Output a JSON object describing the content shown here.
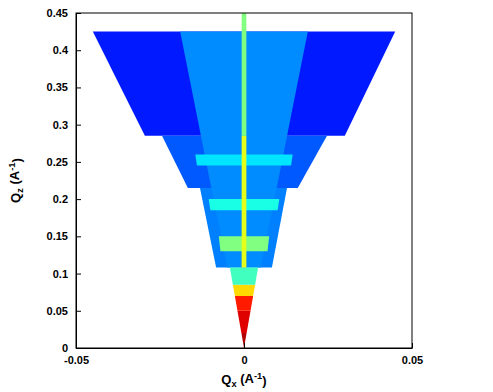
{
  "chart_data": {
    "type": "heatmap",
    "x_label": "Qx (A-1)",
    "y_label": "Qz (A-1)",
    "xlim": [
      -0.05,
      0.05
    ],
    "ylim": [
      0,
      0.45
    ],
    "xticks": [
      -0.05,
      0,
      0.05
    ],
    "yticks": [
      0,
      0.05,
      0.1,
      0.15,
      0.2,
      0.25,
      0.3,
      0.35,
      0.4,
      0.45
    ],
    "color_range": [
      0,
      1
    ],
    "cells": [
      {
        "x": [
          -0.0295,
          0.03,
          0.045,
          -0.045
        ],
        "z": [
          0.285,
          0.285,
          0.425,
          0.425
        ],
        "value": 0.22
      },
      {
        "x": [
          -0.0167,
          0.016,
          0.0247,
          -0.0244
        ],
        "z": [
          0.215,
          0.215,
          0.285,
          0.285
        ],
        "value": 0.27
      },
      {
        "x": [
          -0.0083,
          0.0083,
          0.0128,
          -0.0131
        ],
        "z": [
          0.108,
          0.108,
          0.215,
          0.215
        ],
        "value": 0.3
      },
      {
        "x": [
          -0.005,
          0.005,
          0.019,
          -0.019
        ],
        "z": [
          0.108,
          0.108,
          0.425,
          0.425
        ],
        "value": 0.31
      },
      {
        "x": [
          -0.007,
          0.007,
          0.0075,
          -0.0075
        ],
        "z": [
          0.13,
          0.13,
          0.15,
          0.15
        ],
        "value": 0.5
      },
      {
        "x": [
          -0.01,
          0.01,
          0.0105,
          -0.0105
        ],
        "z": [
          0.185,
          0.185,
          0.2,
          0.2
        ],
        "value": 0.42
      },
      {
        "x": [
          -0.014,
          0.014,
          0.0145,
          -0.0145
        ],
        "z": [
          0.245,
          0.245,
          0.26,
          0.26
        ],
        "value": 0.38
      },
      {
        "x": [
          0,
          0,
          0.00078,
          -0.00078
        ],
        "z": [
          0,
          0,
          0.02,
          0.02
        ],
        "value": 0.92
      },
      {
        "x": [
          -0.00078,
          0.00078,
          0.00195,
          -0.00195
        ],
        "z": [
          0.02,
          0.02,
          0.05,
          0.05
        ],
        "value": 0.85
      },
      {
        "x": [
          -0.00195,
          0.00195,
          0.00272,
          -0.00272
        ],
        "z": [
          0.05,
          0.05,
          0.07,
          0.07
        ],
        "value": 0.78
      },
      {
        "x": [
          -0.00272,
          0.00272,
          0.00331,
          -0.00331
        ],
        "z": [
          0.07,
          0.07,
          0.085,
          0.085
        ],
        "value": 0.63
      },
      {
        "x": [
          -0.00331,
          0.00331,
          0.0042,
          -0.0042
        ],
        "z": [
          0.085,
          0.085,
          0.108,
          0.108
        ],
        "value": 0.45
      },
      {
        "x": [
          -0.0007,
          0.0007,
          0.0007,
          -0.0007
        ],
        "z": [
          0.108,
          0.108,
          0.285,
          0.285
        ],
        "value": 0.58
      },
      {
        "x": [
          -0.0007,
          0.0007,
          0.0007,
          -0.0007
        ],
        "z": [
          0.285,
          0.285,
          0.45,
          0.45
        ],
        "value": 0.5
      }
    ]
  }
}
